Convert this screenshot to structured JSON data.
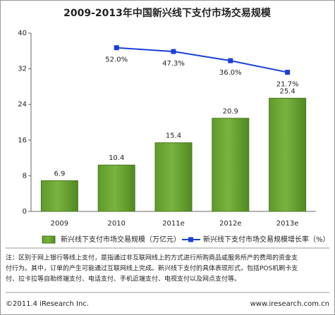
{
  "chart_data": {
    "type": "bar_line",
    "title": "2009-2013年中国新兴线下支付市场交易规模",
    "categories": [
      "2009",
      "2010",
      "2011e",
      "2012e",
      "2013e"
    ],
    "series": [
      {
        "name": "新兴线下支付市场交易规模（万亿元）",
        "type": "bar",
        "color": "#7ab33e",
        "values": [
          6.9,
          10.4,
          15.4,
          20.9,
          25.4
        ]
      },
      {
        "name": "新兴线下支付市场交易规模增长率（%）",
        "type": "line",
        "axis": "y2",
        "color": "#1a3fd8",
        "values": [
          null,
          52.0,
          47.3,
          36.0,
          21.7
        ],
        "value_labels": [
          null,
          "52.0%",
          "47.3%",
          "36.0%",
          "21.7%"
        ]
      }
    ],
    "ylim": [
      0,
      40
    ],
    "yticks": [
      0,
      8,
      16,
      24,
      32,
      40
    ],
    "y2lim": [
      -150,
      70
    ],
    "grid": false,
    "legend": "bottom",
    "note": [
      "注：区别于网上银行等线上支付，是指通过非互联网线上的方式进行所购商品或服务所产的费用的资金支",
      "付行为。其中，订单的产生可能通过互联网线上完成。新兴线下支付的具体表现形式，包括POS机刷卡支",
      "付、拉卡拉等自助终端支付、电话支付、手机近端支付、电视支付以及网点支付等。"
    ],
    "source": "©2011.4 iResearch Inc.",
    "website": "www.iresearch.com.cn"
  }
}
